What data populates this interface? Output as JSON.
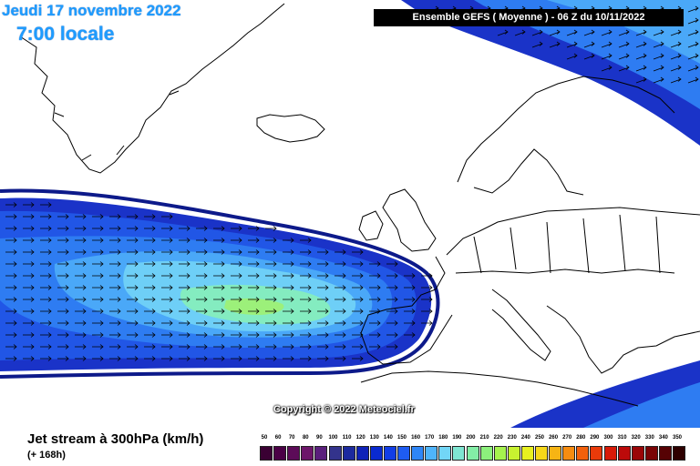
{
  "header": {
    "date": "Jeudi 17 novembre 2022",
    "local_time": "7:00 locale",
    "model_run": "Ensemble GEFS  ( Moyenne )  -  06 Z du 10/11/2022"
  },
  "copyright": "Copyright © 2022 Meteociel.fr",
  "footer": {
    "variable": "Jet stream à 300hPa (km/h)",
    "lead_time": "(+ 168h)"
  },
  "scale": {
    "labels": [
      "50",
      "60",
      "70",
      "80",
      "90",
      "100",
      "110",
      "120",
      "130",
      "140",
      "150",
      "160",
      "170",
      "180",
      "190",
      "200",
      "210",
      "220",
      "230",
      "240",
      "250",
      "260",
      "270",
      "280",
      "290",
      "300",
      "310",
      "320",
      "330",
      "340",
      "350"
    ],
    "colors": [
      "#3a0033",
      "#4b0046",
      "#5c0b58",
      "#6d166a",
      "#5a1f7c",
      "#33338c",
      "#1c2a9e",
      "#0f22b8",
      "#0a2ad0",
      "#123ee6",
      "#1e5cf2",
      "#2f86f7",
      "#4fb4fa",
      "#72d6f6",
      "#7fe6d2",
      "#83eea6",
      "#8cf07c",
      "#a6f24e",
      "#c8f230",
      "#e8f020",
      "#f6d818",
      "#f6b414",
      "#f68c10",
      "#f2600c",
      "#ea3a0a",
      "#d81a08",
      "#bc0a0a",
      "#9a0608",
      "#7a0406",
      "#560204",
      "#2e0000"
    ]
  },
  "map_features": {
    "jet_core_arrows": "east-pointing wind arrows",
    "regions": [
      "Greenland",
      "Iceland",
      "Europe",
      "North Atlantic"
    ]
  }
}
